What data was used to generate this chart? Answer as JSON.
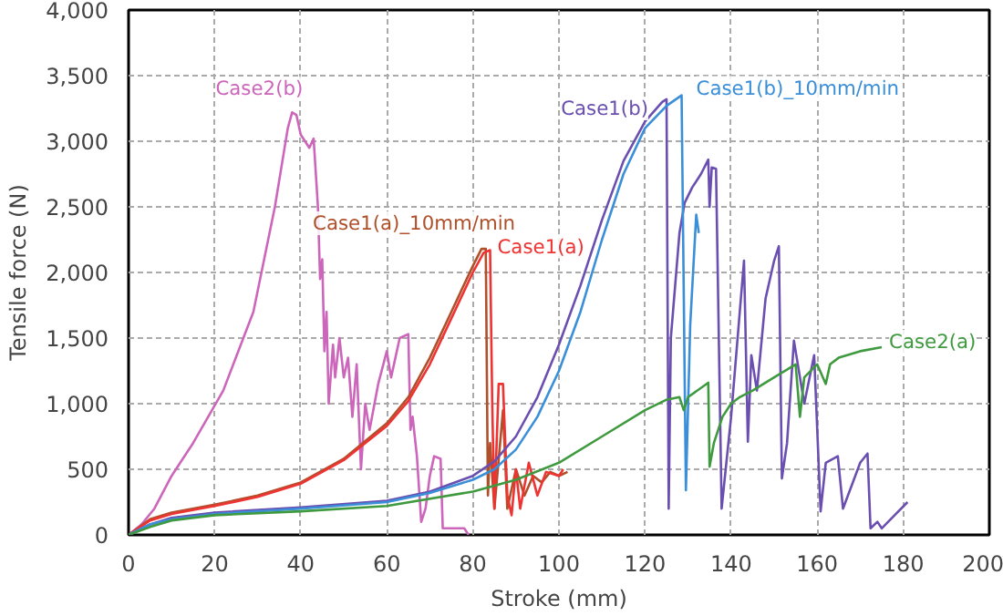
{
  "chart_data": {
    "type": "line",
    "xlabel": "Stroke (mm)",
    "ylabel": "Tensile force (N)",
    "xlim": [
      0,
      200
    ],
    "xticks": [
      0,
      20,
      40,
      60,
      80,
      100,
      120,
      140,
      160,
      180,
      200
    ],
    "ylim": [
      0,
      4000
    ],
    "yticks": [
      0,
      500,
      {
        "value": 1000,
        "label": "1,000"
      },
      {
        "value": 1500,
        "label": "1,500"
      },
      {
        "value": 2000,
        "label": "2,000"
      },
      {
        "value": 2500,
        "label": "2,500"
      },
      {
        "value": 3000,
        "label": "3,000"
      },
      {
        "value": 3500,
        "label": "3,500"
      },
      {
        "value": 4000,
        "label": "4,000"
      }
    ],
    "grid": true,
    "marker": "none",
    "line_style": "solid",
    "series": [
      {
        "name": "Case2(b)",
        "color": "#cc66bb",
        "x": [
          0,
          3,
          6,
          10,
          15,
          22,
          29,
          34,
          37,
          38,
          39,
          40,
          41,
          42,
          43,
          44,
          44.5,
          45,
          45.5,
          46,
          46.5,
          47.5,
          48,
          49,
          50,
          51,
          52,
          53,
          54,
          55,
          56,
          58,
          60,
          61,
          62,
          63,
          65,
          65.5,
          66,
          67,
          68,
          69,
          70,
          71,
          72.5,
          73,
          78,
          79
        ],
        "values": [
          0,
          80,
          200,
          450,
          700,
          1100,
          1700,
          2500,
          3100,
          3220,
          3200,
          3050,
          3000,
          2950,
          3020,
          2500,
          1950,
          2100,
          1400,
          1700,
          1000,
          1450,
          1200,
          1500,
          1200,
          1350,
          900,
          1300,
          500,
          1000,
          800,
          1150,
          1400,
          1200,
          1350,
          1500,
          1530,
          800,
          900,
          600,
          100,
          200,
          450,
          600,
          580,
          50,
          50,
          0
        ]
      },
      {
        "name": "Case1(a)_10mm/min",
        "color": "#b0502a",
        "x": [
          0,
          5,
          10,
          20,
          30,
          40,
          50,
          60,
          65,
          70,
          75,
          80,
          82,
          83,
          83.5,
          84,
          85,
          87,
          88,
          90,
          92,
          94,
          96,
          98,
          100,
          102
        ],
        "values": [
          0,
          120,
          170,
          230,
          300,
          400,
          580,
          850,
          1050,
          1350,
          1700,
          2050,
          2180,
          2180,
          300,
          700,
          200,
          950,
          200,
          500,
          300,
          450,
          400,
          480,
          450,
          480
        ]
      },
      {
        "name": "Case1(a)",
        "color": "#ee3333",
        "x": [
          0,
          5,
          10,
          20,
          30,
          40,
          50,
          60,
          65,
          70,
          75,
          80,
          82.5,
          84,
          84.5,
          85,
          86,
          87,
          88,
          89,
          90,
          91,
          93,
          95,
          97,
          100,
          101
        ],
        "values": [
          0,
          110,
          160,
          220,
          290,
          390,
          570,
          830,
          1020,
          1300,
          1650,
          2000,
          2150,
          2170,
          1000,
          200,
          1150,
          1150,
          300,
          150,
          500,
          200,
          550,
          300,
          480,
          450,
          500
        ]
      },
      {
        "name": "Case1(b)",
        "color": "#6a4fb0",
        "x": [
          0,
          5,
          10,
          20,
          40,
          60,
          70,
          80,
          85,
          90,
          95,
          100,
          105,
          110,
          115,
          120,
          124,
          125,
          125.5,
          126,
          128,
          129.2,
          131,
          133,
          134.7,
          135,
          135.5,
          136.5,
          137.8,
          140,
          143,
          143.9,
          144.7,
          146,
          148,
          150,
          151.1,
          151.8,
          153,
          154.6,
          156,
          157,
          159.3,
          160.8,
          162,
          164.8,
          166,
          170,
          171.7,
          172.4,
          174,
          175,
          178,
          181
        ],
        "values": [
          0,
          80,
          130,
          170,
          210,
          260,
          330,
          450,
          560,
          750,
          1050,
          1450,
          1900,
          2400,
          2850,
          3150,
          3300,
          3320,
          200,
          1500,
          2300,
          2530,
          2650,
          2750,
          2860,
          2500,
          2800,
          2790,
          200,
          900,
          2090,
          710,
          1370,
          1100,
          1800,
          2090,
          2200,
          430,
          700,
          1480,
          1200,
          1000,
          1370,
          180,
          550,
          600,
          200,
          550,
          620,
          50,
          100,
          50,
          150,
          250
        ]
      },
      {
        "name": "Case1(b)_10mm/min",
        "color": "#3a8fd8",
        "x": [
          0,
          5,
          10,
          20,
          40,
          60,
          70,
          80,
          85,
          90,
          95,
          100,
          105,
          110,
          115,
          120,
          125,
          128.5,
          129.5,
          130.5,
          131.9,
          132.5
        ],
        "values": [
          0,
          80,
          120,
          160,
          200,
          250,
          320,
          420,
          500,
          650,
          900,
          1250,
          1700,
          2250,
          2750,
          3100,
          3270,
          3350,
          340,
          1600,
          2440,
          2300
        ]
      },
      {
        "name": "Case2(a)",
        "color": "#3f9a3f",
        "x": [
          0,
          5,
          10,
          20,
          40,
          60,
          80,
          90,
          100,
          110,
          120,
          125,
          128,
          129,
          130,
          134.7,
          135,
          136,
          138,
          140,
          142,
          145,
          150,
          155,
          156,
          157,
          160,
          162,
          163,
          165,
          170,
          175
        ],
        "values": [
          0,
          60,
          110,
          150,
          180,
          220,
          330,
          420,
          550,
          750,
          950,
          1030,
          1050,
          950,
          1050,
          1160,
          520,
          700,
          900,
          1000,
          1050,
          1100,
          1200,
          1300,
          900,
          1200,
          1300,
          1150,
          1300,
          1350,
          1400,
          1430
        ]
      }
    ]
  }
}
